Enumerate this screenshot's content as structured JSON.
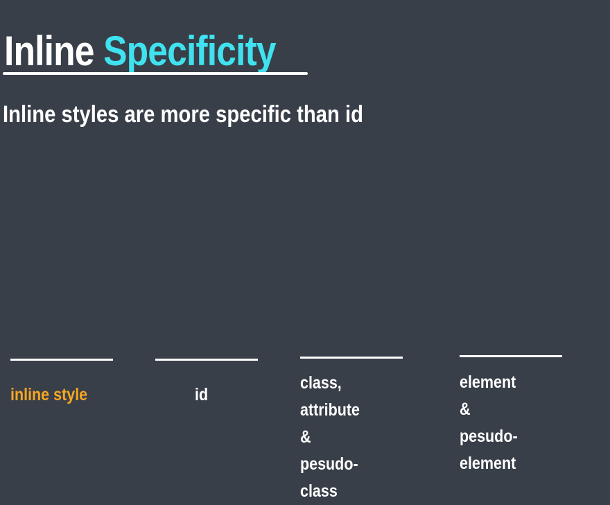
{
  "slide": {
    "title_part1": "Inline",
    "title_part2": "Specificity",
    "subtitle": "Inline styles are more specific than id",
    "accent_color": "#3fe2ee",
    "highlight_color": "#f5a623",
    "background_color": "#393f48",
    "slots": [
      {
        "label": "inline style"
      },
      {
        "label": "id"
      },
      {
        "label": "class,\nattribute &\npesudo-class"
      },
      {
        "label": "element &\npesudo-\nelement"
      }
    ]
  }
}
